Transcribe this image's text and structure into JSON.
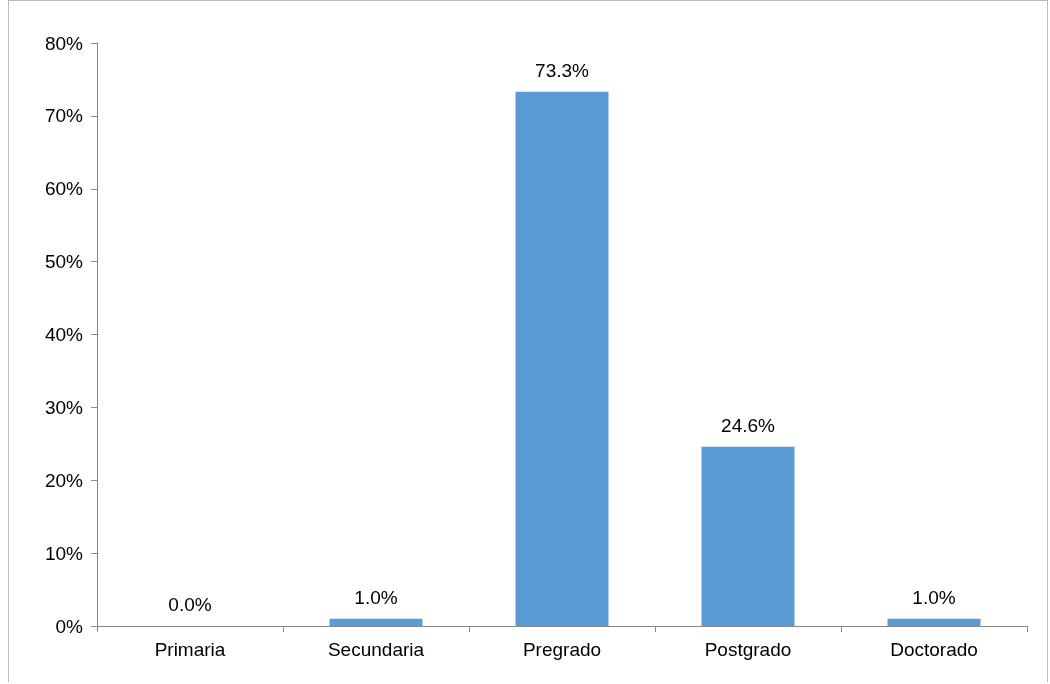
{
  "chart_data": {
    "type": "bar",
    "categories": [
      "Primaria",
      "Secundaria",
      "Pregrado",
      "Postgrado",
      "Doctorado"
    ],
    "values": [
      0.0,
      1.0,
      73.3,
      24.6,
      1.0
    ],
    "value_labels": [
      "0.0%",
      "1.0%",
      "73.3%",
      "24.6%",
      "1.0%"
    ],
    "color": "#5b9bd5",
    "ylim": [
      0,
      80
    ],
    "yticks": [
      {
        "value": 0,
        "label": "0%"
      },
      {
        "value": 10,
        "label": "10%"
      },
      {
        "value": 20,
        "label": "20%"
      },
      {
        "value": 30,
        "label": "30%"
      },
      {
        "value": 40,
        "label": "40%"
      },
      {
        "value": 50,
        "label": "50%"
      },
      {
        "value": 60,
        "label": "60%"
      },
      {
        "value": 70,
        "label": "70%"
      },
      {
        "value": 80,
        "label": "80%"
      }
    ],
    "grid": false
  }
}
